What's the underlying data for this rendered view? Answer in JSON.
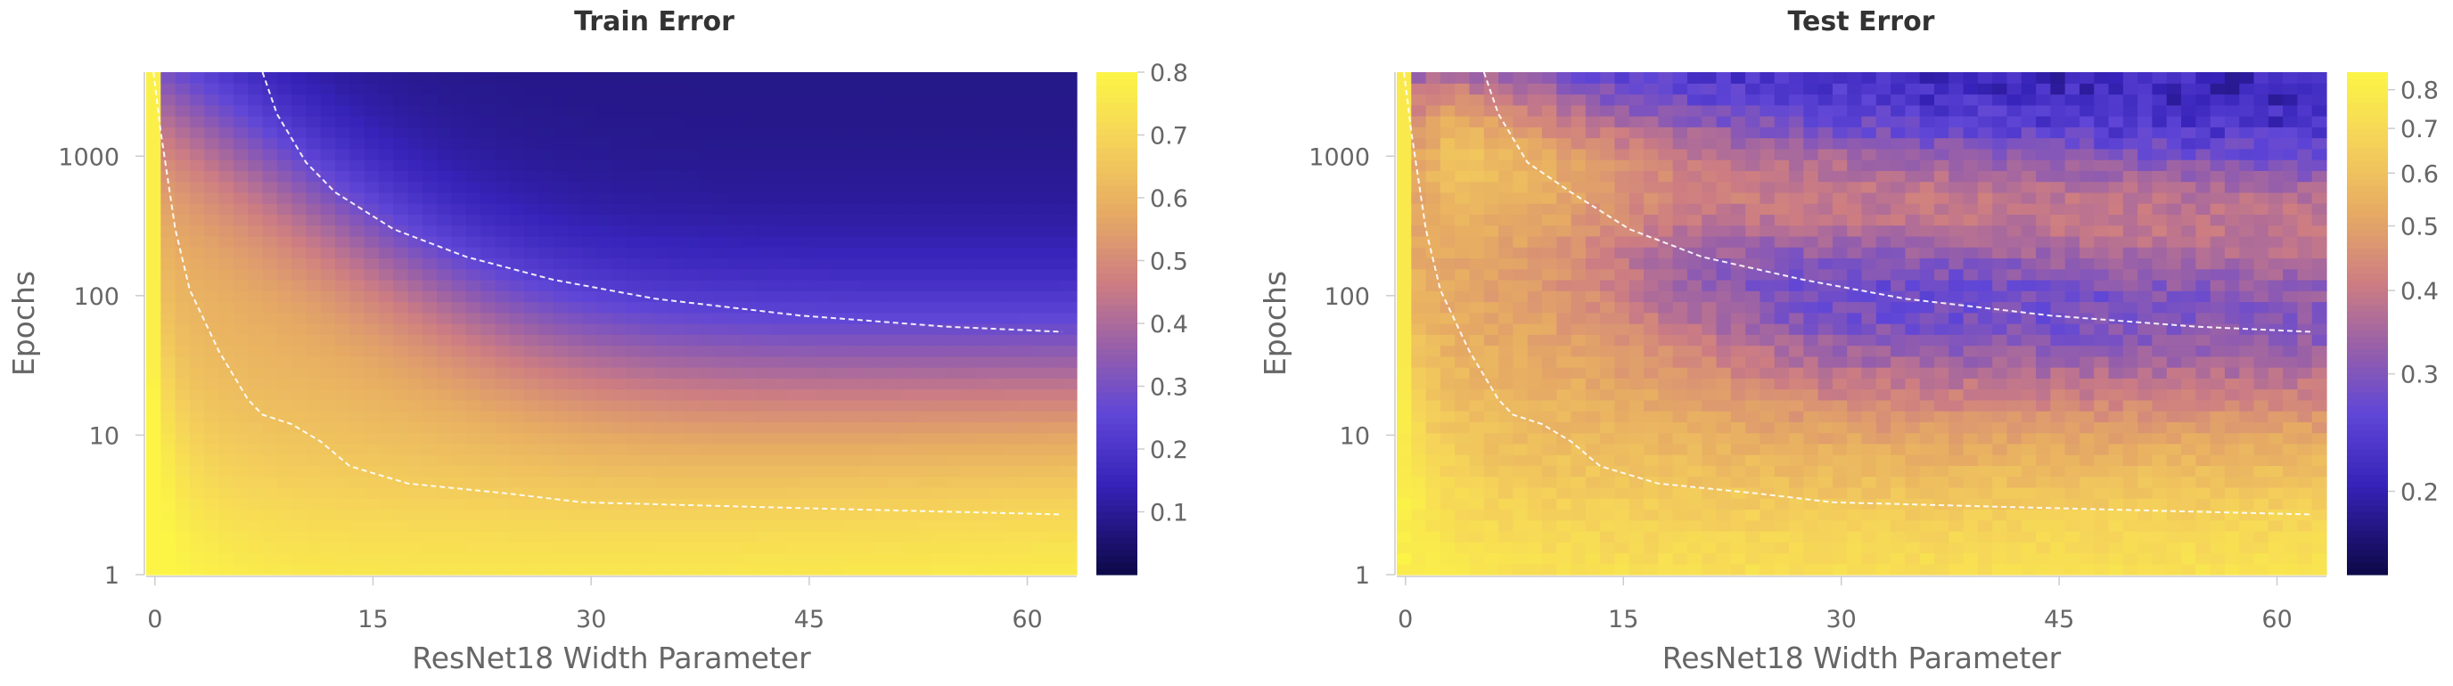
{
  "chart_data": [
    {
      "type": "heatmap",
      "title": "Train Error",
      "xlabel": "ResNet18 Width Parameter",
      "ylabel": "Epochs",
      "x_ticks": [
        0,
        15,
        30,
        45,
        60
      ],
      "y_ticks": [
        1,
        10,
        100,
        1000
      ],
      "y_scale": "log",
      "xlim": [
        0,
        64
      ],
      "ylim": [
        1,
        4000
      ],
      "colorbar": {
        "min": 0.0,
        "max": 0.8,
        "ticks": [
          0.1,
          0.2,
          0.3,
          0.4,
          0.5,
          0.6,
          0.7,
          0.8
        ],
        "colormap": "plasma-like (dark navy to yellow)"
      },
      "contours": [
        {
          "style": "white dashed",
          "points": [
            [
              0.5,
              4000
            ],
            [
              1,
              1500
            ],
            [
              2,
              300
            ],
            [
              3,
              110
            ],
            [
              5,
              40
            ],
            [
              7,
              18
            ],
            [
              8,
              14
            ],
            [
              10,
              12
            ],
            [
              12,
              9
            ],
            [
              14,
              6
            ],
            [
              18,
              4.5
            ],
            [
              25,
              3.8
            ],
            [
              30,
              3.3
            ],
            [
              45,
              3.0
            ],
            [
              63,
              2.7
            ]
          ]
        },
        {
          "style": "white dashed",
          "points": [
            [
              8,
              4000
            ],
            [
              9,
              2000
            ],
            [
              11,
              900
            ],
            [
              13,
              550
            ],
            [
              17,
              300
            ],
            [
              22,
              190
            ],
            [
              28,
              130
            ],
            [
              35,
              95
            ],
            [
              45,
              72
            ],
            [
              55,
              60
            ],
            [
              63,
              55
            ]
          ]
        }
      ]
    },
    {
      "type": "heatmap",
      "title": "Test Error",
      "xlabel": "ResNet18 Width Parameter",
      "ylabel": "Epochs",
      "x_ticks": [
        0,
        15,
        30,
        45,
        60
      ],
      "y_ticks": [
        1,
        10,
        100,
        1000
      ],
      "y_scale": "log",
      "xlim": [
        0,
        64
      ],
      "ylim": [
        1,
        4000
      ],
      "colorbar": {
        "min": 0.15,
        "max": 0.85,
        "ticks": [
          0.2,
          0.3,
          0.4,
          0.5,
          0.6,
          0.7,
          0.8
        ],
        "scale": "log",
        "colormap": "plasma-like (dark navy to yellow)"
      },
      "contours": [
        {
          "style": "white dashed",
          "points": [
            [
              0.5,
              4000
            ],
            [
              1,
              1500
            ],
            [
              2,
              300
            ],
            [
              3,
              110
            ],
            [
              5,
              40
            ],
            [
              7,
              18
            ],
            [
              8,
              14
            ],
            [
              10,
              12
            ],
            [
              12,
              9
            ],
            [
              14,
              6
            ],
            [
              18,
              4.5
            ],
            [
              25,
              3.8
            ],
            [
              30,
              3.3
            ],
            [
              45,
              3.0
            ],
            [
              63,
              2.7
            ]
          ]
        },
        {
          "style": "white dashed",
          "points": [
            [
              6,
              4000
            ],
            [
              7,
              2000
            ],
            [
              9,
              900
            ],
            [
              12,
              550
            ],
            [
              16,
              300
            ],
            [
              21,
              190
            ],
            [
              28,
              130
            ],
            [
              35,
              95
            ],
            [
              45,
              72
            ],
            [
              55,
              60
            ],
            [
              63,
              55
            ]
          ]
        }
      ]
    }
  ]
}
